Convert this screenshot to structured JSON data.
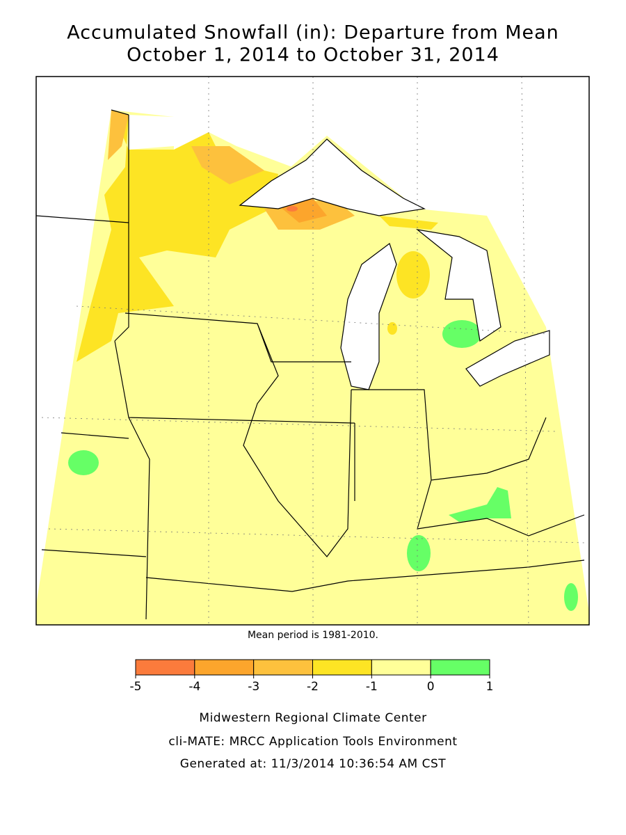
{
  "title": [
    "Accumulated Snowfall (in): Departure from Mean",
    "October 1, 2014 to October 31, 2014"
  ],
  "note": "Mean period is 1981-2010.",
  "legend": {
    "ticks": [
      -5,
      -4,
      -3,
      -2,
      -1,
      0,
      1
    ],
    "colors": [
      "#fb7b3c",
      "#fca52c",
      "#fdc13d",
      "#fde424",
      "#ffff99",
      "#66ff66"
    ]
  },
  "footer": [
    "Midwestern Regional Climate Center",
    "cli-MATE: MRCC Application Tools Environment",
    "Generated at: 11/3/2014 10:36:54 AM CST"
  ]
}
